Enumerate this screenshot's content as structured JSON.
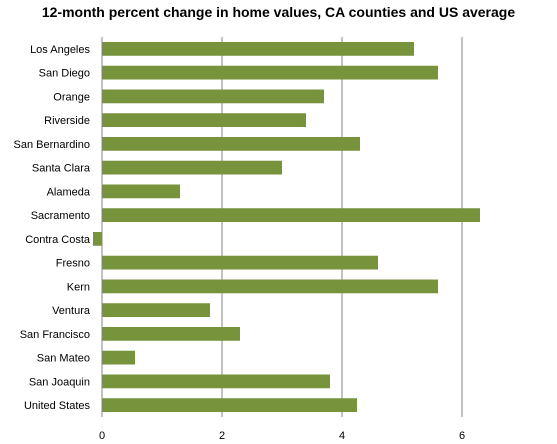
{
  "chart_data": {
    "type": "bar",
    "orientation": "horizontal",
    "title": "12-month percent change in home values, CA counties and US average",
    "xlabel": "",
    "ylabel": "",
    "categories": [
      "Los Angeles",
      "San Diego",
      "Orange",
      "Riverside",
      "San Bernardino",
      "Santa Clara",
      "Alameda",
      "Sacramento",
      "Contra Costa",
      "Fresno",
      "Kern",
      "Ventura",
      "San Francisco",
      "San Mateo",
      "San Joaquin",
      "United States"
    ],
    "values": [
      5.2,
      5.6,
      3.7,
      3.4,
      4.3,
      3.0,
      1.3,
      6.3,
      -0.15,
      4.6,
      5.6,
      1.8,
      2.3,
      0.55,
      3.8,
      4.25
    ],
    "xlim": [
      -0.1,
      7.3
    ],
    "xticks": [
      0,
      2,
      4,
      6
    ],
    "grid": true,
    "legend": "none",
    "bar_color": "#77933c",
    "grid_color": "#868686"
  }
}
